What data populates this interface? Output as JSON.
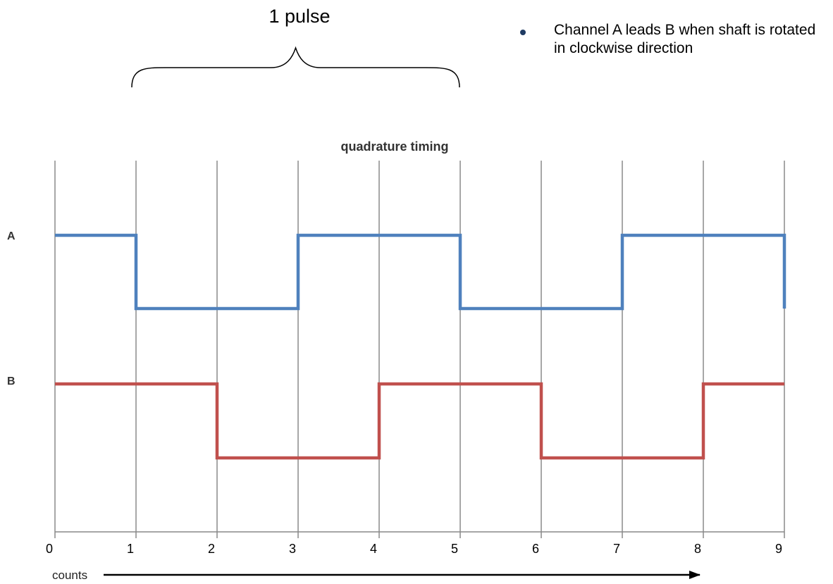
{
  "pulse_label": "1 pulse",
  "note": "Channel A leads B when shaft is rotated in clockwise direction",
  "chart_data": {
    "type": "line",
    "title": "quadrature timing",
    "xlabel": "counts",
    "ylabel": "",
    "x": [
      0,
      1,
      2,
      3,
      4,
      5,
      6,
      7,
      8,
      9
    ],
    "xlim": [
      0,
      9
    ],
    "ticks": [
      "0",
      "1",
      "2",
      "3",
      "4",
      "5",
      "6",
      "7",
      "8",
      "9"
    ],
    "grid": true,
    "series": [
      {
        "name": "A",
        "color": "#4f81bd",
        "steps": [
          [
            0,
            1
          ],
          [
            1,
            1
          ],
          [
            1,
            0
          ],
          [
            3,
            0
          ],
          [
            3,
            1
          ],
          [
            5,
            1
          ],
          [
            5,
            0
          ],
          [
            7,
            0
          ],
          [
            7,
            1
          ],
          [
            9,
            1
          ],
          [
            9,
            0
          ]
        ]
      },
      {
        "name": "B",
        "color": "#c0504d",
        "steps": [
          [
            0,
            1
          ],
          [
            2,
            1
          ],
          [
            2,
            0
          ],
          [
            4,
            0
          ],
          [
            4,
            1
          ],
          [
            6,
            1
          ],
          [
            6,
            0
          ],
          [
            8,
            0
          ],
          [
            8,
            1
          ],
          [
            9,
            1
          ]
        ]
      }
    ],
    "brace_range": [
      1,
      5
    ]
  }
}
